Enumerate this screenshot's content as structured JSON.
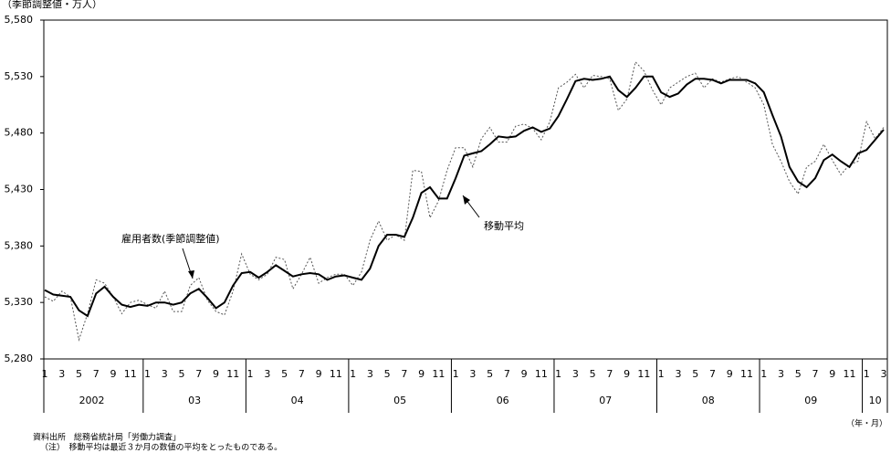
{
  "chart_data": {
    "type": "line",
    "y_axis_label": "（季節調整値・万人）",
    "x_axis_unit": "（年・月）",
    "source": "資料出所　総務省統計局「労働力調査」",
    "note": "（注）　移動平均は最近３か月の数値の平均をとったものである。",
    "ylim": [
      5280,
      5580
    ],
    "yticks": [
      {
        "value": 5280,
        "label": "5,280"
      },
      {
        "value": 5330,
        "label": "5,330"
      },
      {
        "value": 5380,
        "label": "5,380"
      },
      {
        "value": 5430,
        "label": "5,430"
      },
      {
        "value": 5480,
        "label": "5,480"
      },
      {
        "value": 5530,
        "label": "5,530"
      },
      {
        "value": 5580,
        "label": "5,580"
      }
    ],
    "categories": [
      "1",
      null,
      "3",
      null,
      "5",
      null,
      "7",
      null,
      "9",
      null,
      "11",
      null,
      "1",
      null,
      "3",
      null,
      "5",
      null,
      "7",
      null,
      "9",
      null,
      "11",
      null,
      "1",
      null,
      "3",
      null,
      "5",
      null,
      "7",
      null,
      "9",
      null,
      "11",
      null,
      "1",
      null,
      "3",
      null,
      "5",
      null,
      "7",
      null,
      "9",
      null,
      "11",
      null,
      "1",
      null,
      "3",
      null,
      "5",
      null,
      "7",
      null,
      "9",
      null,
      "11",
      null,
      "1",
      null,
      "3",
      null,
      "5",
      null,
      "7",
      null,
      "9",
      null,
      "11",
      null,
      "1",
      null,
      "3",
      null,
      "5",
      null,
      "7",
      null,
      "9",
      null,
      "11",
      null,
      "1",
      null,
      "3",
      null,
      "5",
      null,
      "7",
      null,
      "9",
      null,
      "11",
      null,
      "1",
      null,
      "3"
    ],
    "years": [
      "2002",
      "03",
      "04",
      "05",
      "06",
      "07",
      "08",
      "09",
      "10"
    ],
    "series": [
      {
        "name": "雇用者数(季節調整値)",
        "color": "#555555",
        "dash": "dotted",
        "values": [
          5335,
          5331,
          5340,
          5335,
          5297,
          5320,
          5350,
          5347,
          5335,
          5320,
          5330,
          5332,
          5328,
          5325,
          5340,
          5322,
          5322,
          5345,
          5352,
          5332,
          5322,
          5319,
          5340,
          5373,
          5355,
          5350,
          5355,
          5370,
          5368,
          5342,
          5355,
          5370,
          5347,
          5352,
          5355,
          5355,
          5345,
          5357,
          5385,
          5402,
          5385,
          5390,
          5385,
          5447,
          5446,
          5405,
          5420,
          5447,
          5467,
          5467,
          5450,
          5475,
          5485,
          5472,
          5472,
          5486,
          5488,
          5484,
          5474,
          5490,
          5520,
          5525,
          5532,
          5520,
          5531,
          5530,
          5528,
          5500,
          5510,
          5543,
          5535,
          5518,
          5505,
          5520,
          5525,
          5530,
          5533,
          5520,
          5528,
          5525,
          5528,
          5530,
          5525,
          5520,
          5505,
          5470,
          5455,
          5437,
          5426,
          5450,
          5455,
          5470,
          5456,
          5443,
          5452,
          5455,
          5490,
          5475,
          5485
        ]
      },
      {
        "name": "移動平均",
        "color": "#000000",
        "dash": "solid",
        "values": [
          5341,
          5337,
          5336,
          5335,
          5323,
          5318,
          5338,
          5344,
          5335,
          5328,
          5326,
          5328,
          5327,
          5330,
          5330,
          5328,
          5330,
          5338,
          5342,
          5334,
          5325,
          5330,
          5345,
          5356,
          5357,
          5352,
          5357,
          5363,
          5358,
          5353,
          5355,
          5356,
          5355,
          5350,
          5353,
          5354,
          5352,
          5350,
          5360,
          5380,
          5390,
          5390,
          5388,
          5405,
          5427,
          5432,
          5422,
          5422,
          5440,
          5460,
          5462,
          5464,
          5470,
          5477,
          5476,
          5477,
          5482,
          5485,
          5481,
          5484,
          5495,
          5510,
          5526,
          5528,
          5527,
          5528,
          5530,
          5518,
          5512,
          5520,
          5530,
          5530,
          5516,
          5512,
          5515,
          5523,
          5528,
          5528,
          5527,
          5524,
          5527,
          5527,
          5527,
          5524,
          5516,
          5496,
          5477,
          5450,
          5437,
          5432,
          5440,
          5456,
          5461,
          5455,
          5450,
          5462,
          5465,
          5474,
          5483
        ]
      }
    ]
  }
}
